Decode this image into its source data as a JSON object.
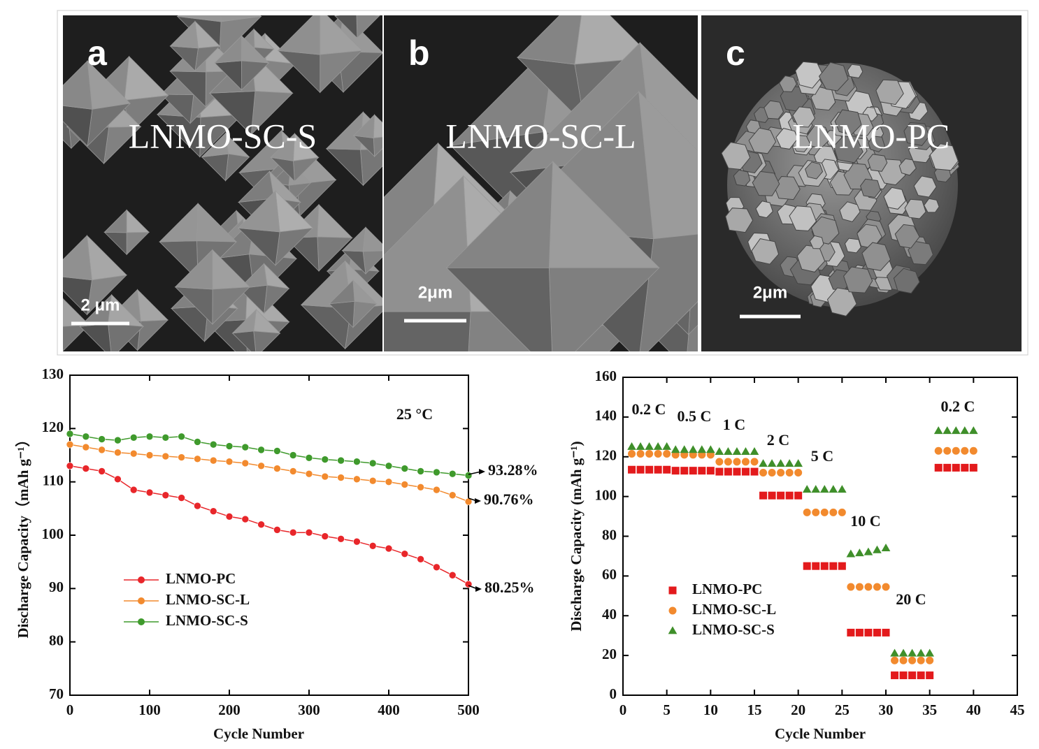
{
  "panels": [
    {
      "letter": "a",
      "label": "LNMO-SC-S",
      "scale": "2 μm"
    },
    {
      "letter": "b",
      "label": "LNMO-SC-L",
      "scale": "2μm"
    },
    {
      "letter": "c",
      "label": "LNMO-PC",
      "scale": "2μm"
    }
  ],
  "chart_data": [
    {
      "type": "line",
      "x_label": "Cycle Number",
      "y_label": "Discharge Capacity（mAh g⁻¹）",
      "x": [
        0,
        20,
        40,
        60,
        80,
        100,
        120,
        140,
        160,
        180,
        200,
        220,
        240,
        260,
        280,
        300,
        320,
        340,
        360,
        380,
        400,
        420,
        440,
        460,
        480,
        500
      ],
      "series": [
        {
          "name": "LNMO-PC",
          "color": "#e8262a",
          "values": [
            113,
            112.5,
            112,
            110.5,
            108.5,
            108,
            107.5,
            107,
            105.5,
            104.5,
            103.5,
            103,
            102,
            101,
            100.5,
            100.5,
            99.8,
            99.3,
            98.8,
            98,
            97.5,
            96.5,
            95.5,
            94,
            92.5,
            90.8
          ]
        },
        {
          "name": "LNMO-SC-L",
          "color": "#f28a2e",
          "values": [
            117,
            116.5,
            116,
            115.5,
            115.3,
            115,
            114.8,
            114.6,
            114.3,
            114,
            113.8,
            113.5,
            113,
            112.5,
            112,
            111.5,
            111,
            110.8,
            110.5,
            110.2,
            110,
            109.5,
            109,
            108.5,
            107.5,
            106.3
          ]
        },
        {
          "name": "LNMO-SC-S",
          "color": "#3f9a2c",
          "values": [
            119,
            118.5,
            118,
            117.8,
            118.3,
            118.5,
            118.3,
            118.5,
            117.5,
            117,
            116.7,
            116.5,
            116,
            115.8,
            115,
            114.5,
            114.2,
            114,
            113.8,
            113.5,
            113,
            112.5,
            112,
            111.8,
            111.5,
            111.2
          ]
        }
      ],
      "xlim": [
        0,
        500
      ],
      "xticks": [
        0,
        100,
        200,
        300,
        400,
        500
      ],
      "ylim": [
        70,
        130
      ],
      "yticks": [
        70,
        80,
        90,
        100,
        110,
        120,
        130
      ],
      "annotations": [
        "25 °C",
        "93.28%",
        "90.76%",
        "80.25%"
      ]
    },
    {
      "type": "scatter",
      "x_label": "Cycle Number",
      "y_label": "Discharge Capacity (mAh g⁻¹)",
      "x": [
        1,
        2,
        3,
        4,
        5,
        6,
        7,
        8,
        9,
        10,
        11,
        12,
        13,
        14,
        15,
        16,
        17,
        18,
        19,
        20,
        21,
        22,
        23,
        24,
        25,
        26,
        27,
        28,
        29,
        30,
        31,
        32,
        33,
        34,
        35,
        36,
        37,
        38,
        39,
        40
      ],
      "series": [
        {
          "name": "LNMO-PC",
          "color": "#e31a1c",
          "marker": "square",
          "values": [
            113.5,
            113.5,
            113.5,
            113.5,
            113.5,
            113,
            113,
            113,
            113,
            113,
            112.5,
            112.5,
            112.5,
            112.5,
            112.5,
            100.5,
            100.5,
            100.5,
            100.5,
            100.5,
            65,
            65,
            65,
            65,
            65,
            31.5,
            31.5,
            31.5,
            31.5,
            31.5,
            10,
            10,
            10,
            10,
            10,
            114.5,
            114.5,
            114.5,
            114.5,
            114.5
          ]
        },
        {
          "name": "LNMO-SC-L",
          "color": "#f28a2e",
          "marker": "circle",
          "values": [
            121.5,
            121.5,
            121.5,
            121.5,
            121.5,
            121,
            121,
            121,
            121,
            121,
            117.5,
            117.5,
            117.5,
            117.5,
            117.5,
            112,
            112,
            112,
            112,
            112,
            92,
            92,
            92,
            92,
            92,
            54.5,
            54.5,
            54.5,
            54.5,
            54.5,
            17.5,
            17.5,
            17.5,
            17.5,
            17.5,
            123,
            123,
            123,
            123,
            123
          ]
        },
        {
          "name": "LNMO-SC-S",
          "color": "#3f8f2a",
          "marker": "triangle",
          "values": [
            125,
            125,
            125,
            125,
            125,
            123.5,
            123.5,
            123.5,
            123.5,
            123.5,
            122.5,
            122.5,
            122.5,
            122.5,
            122.5,
            116.5,
            116.5,
            116.5,
            116.5,
            116.5,
            103.5,
            103.5,
            103.5,
            103.5,
            103.5,
            71,
            71.5,
            72,
            73,
            74,
            21,
            21,
            21,
            21,
            21,
            133,
            133,
            133,
            133,
            133
          ]
        }
      ],
      "xlim": [
        0,
        45
      ],
      "xticks": [
        0,
        5,
        10,
        15,
        20,
        25,
        30,
        35,
        40,
        45
      ],
      "ylim": [
        0,
        160
      ],
      "yticks": [
        0,
        20,
        40,
        60,
        80,
        100,
        120,
        140,
        160
      ],
      "annotations": [
        "0.2 C",
        "0.5 C",
        "1 C",
        "2 C",
        "5 C",
        "10 C",
        "20 C",
        "0.2 C"
      ]
    }
  ]
}
